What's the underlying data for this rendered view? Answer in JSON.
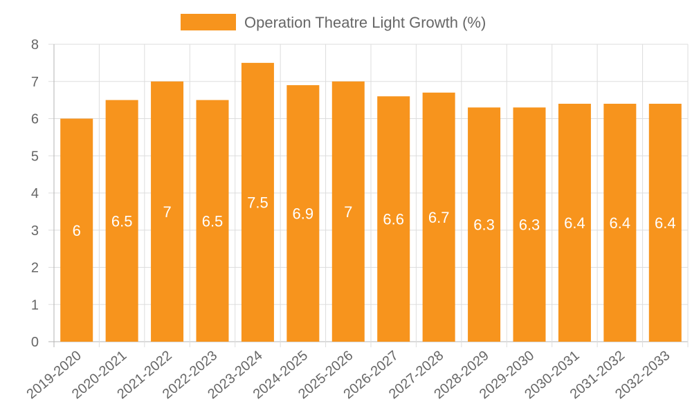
{
  "colors": {
    "bar_fill": "#f7941d",
    "grid": "#dddddd",
    "axis": "#b3b3b3",
    "text": "#666666",
    "label": "#ffffff"
  },
  "chart_data": {
    "type": "bar",
    "categories": [
      "2019-2020",
      "2020-2021",
      "2021-2022",
      "2022-2023",
      "2023-2024",
      "2024-2025",
      "2025-2026",
      "2026-2027",
      "2027-2028",
      "2028-2029",
      "2029-2030",
      "2030-2031",
      "2031-2032",
      "2032-2033"
    ],
    "series": [
      {
        "name": "Operation Theatre Light Growth (%)",
        "values": [
          6,
          6.5,
          7,
          6.5,
          7.5,
          6.9,
          7,
          6.6,
          6.7,
          6.3,
          6.3,
          6.4,
          6.4,
          6.4
        ]
      }
    ],
    "ylim": [
      0,
      8
    ],
    "yticks": [
      0,
      1,
      2,
      3,
      4,
      5,
      6,
      7,
      8
    ],
    "grid": true,
    "legend_position": "top-center",
    "data_labels": true
  }
}
